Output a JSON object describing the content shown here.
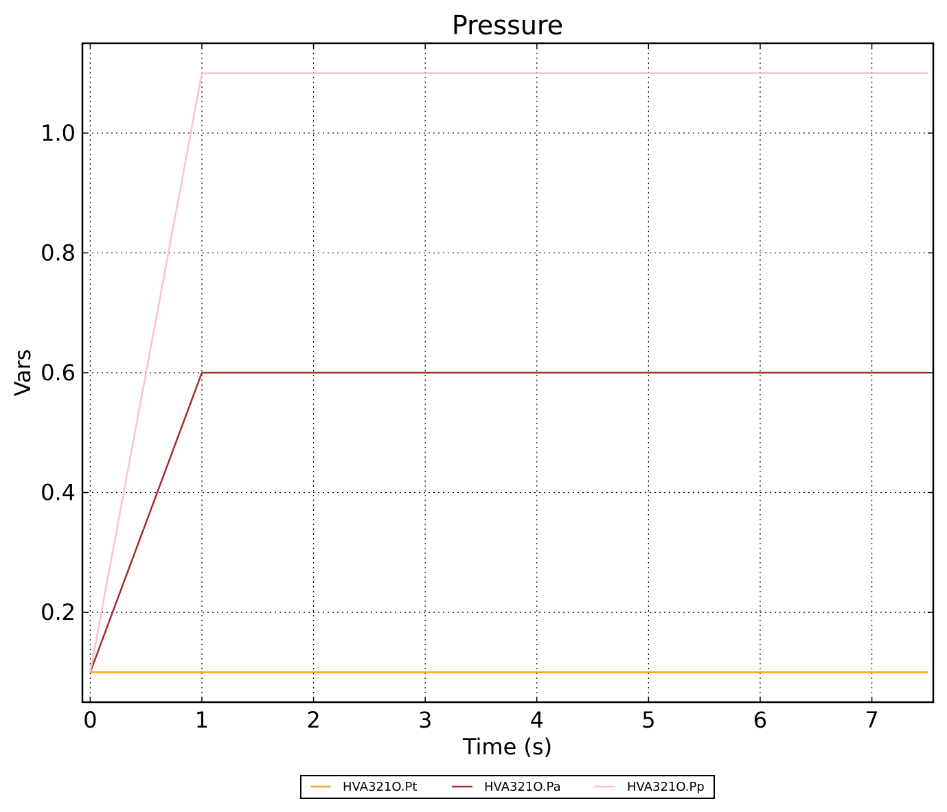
{
  "chart_data": {
    "type": "line",
    "title": "Pressure",
    "xlabel": "Time (s)",
    "ylabel": "Vars",
    "xlim": [
      -0.07,
      7.55
    ],
    "ylim": [
      0.05,
      1.15
    ],
    "xticks": [
      0,
      1,
      2,
      3,
      4,
      5,
      6,
      7
    ],
    "xtick_labels": [
      "0",
      "1",
      "2",
      "3",
      "4",
      "5",
      "6",
      "7"
    ],
    "yticks": [
      0.2,
      0.4,
      0.6,
      0.8,
      1.0
    ],
    "ytick_labels": [
      "0.2",
      "0.4",
      "0.6",
      "0.8",
      "1.0"
    ],
    "grid": true,
    "legend_position": "bottom-center",
    "series": [
      {
        "name": "HVA321O.Pt",
        "color": "#f5a623",
        "x": [
          0,
          1,
          7.5
        ],
        "y": [
          0.1,
          0.1,
          0.1
        ]
      },
      {
        "name": "HVA321O.Pa",
        "color": "#a52a2a",
        "x": [
          0,
          1,
          7.5
        ],
        "y": [
          0.1,
          0.6,
          0.6
        ]
      },
      {
        "name": "HVA321O.Pp",
        "color": "#ffc0cb",
        "x": [
          0,
          1,
          7.5
        ],
        "y": [
          0.1,
          1.1,
          1.1
        ]
      }
    ]
  }
}
